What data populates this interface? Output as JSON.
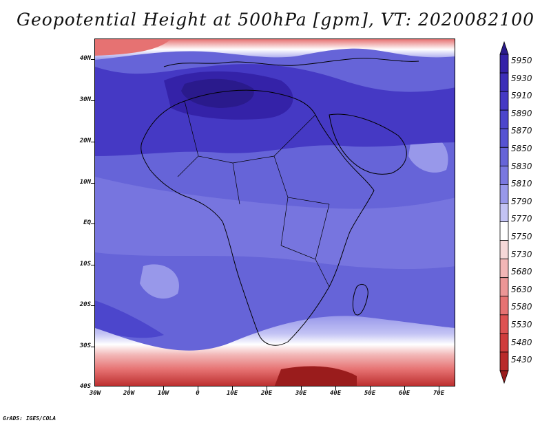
{
  "title": "Geopotential Height at 500hPa [gpm], VT: 2020082100",
  "footer": "GrADS: IGES/COLA",
  "lat_labels": [
    "40N",
    "30N",
    "20N",
    "10N",
    "EQ",
    "10S",
    "20S",
    "30S",
    "40S"
  ],
  "lon_labels": [
    "30W",
    "20W",
    "10W",
    "0",
    "10E",
    "20E",
    "30E",
    "40E",
    "50E",
    "60E",
    "70E"
  ],
  "colorbar": {
    "levels": [
      "5950",
      "5930",
      "5910",
      "5890",
      "5870",
      "5850",
      "5830",
      "5810",
      "5790",
      "5770",
      "5750",
      "5730",
      "5680",
      "5630",
      "5580",
      "5530",
      "5480",
      "5430"
    ],
    "colors": [
      "#2a1a8c",
      "#3422a8",
      "#3c2eb8",
      "#4539c4",
      "#4c46cc",
      "#5653d2",
      "#6664d8",
      "#7a78e0",
      "#9898ea",
      "#c3c3f4",
      "#ffffff",
      "#f6d8d8",
      "#f2b6b6",
      "#ec9696",
      "#e67272",
      "#de5252",
      "#d03c3c",
      "#b92a2a",
      "#9a1c1c"
    ]
  },
  "field_colors": {
    "background": "#6664d8",
    "north_high": "#3c2eb8",
    "north_core": "#2a1a8c",
    "south_low": "#e67272",
    "south_core": "#b92a2a",
    "transition_white": "#ffffff",
    "transition_pink": "#f2b6b6",
    "transition_lavender": "#c3c3f4"
  }
}
